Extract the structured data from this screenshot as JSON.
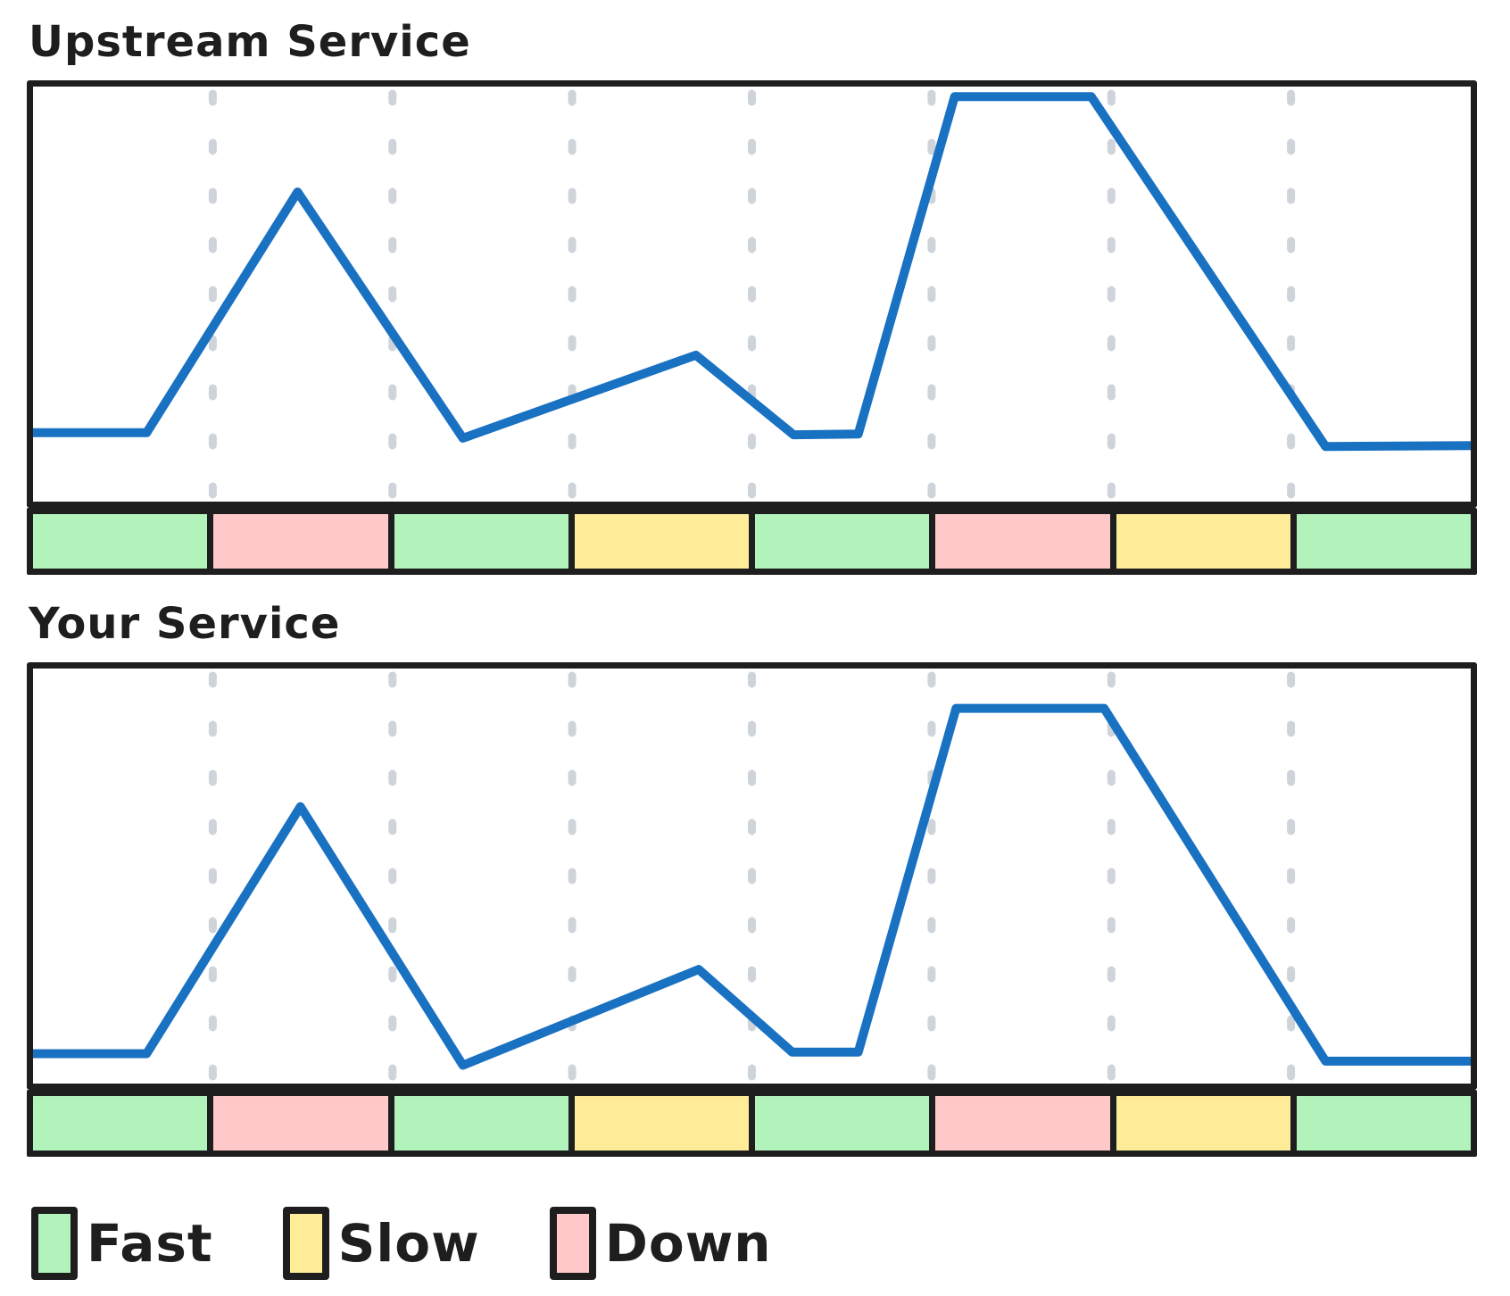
{
  "titles": {
    "chart1": "Upstream Service",
    "chart2": "Your Service"
  },
  "colors": {
    "line": "#1971c2",
    "frame": "#1e1e1e",
    "gridline": "#ced4da",
    "background": "#ffffff"
  },
  "legend": {
    "items": [
      {
        "label": "Fast",
        "color": "#b2f2bb"
      },
      {
        "label": "Slow",
        "color": "#ffec99"
      },
      {
        "label": "Down",
        "color": "#ffc9c9"
      }
    ]
  },
  "chart_data": [
    {
      "type": "line",
      "title": "Upstream Service",
      "xlabel": "",
      "ylabel": "",
      "grid": "7 dashed vertical gridlines at eighths of the width",
      "gridlines_x_pct": [
        12.5,
        25,
        37.5,
        50,
        62.5,
        75,
        87.5
      ],
      "segments": [
        "Fast",
        "Down",
        "Fast",
        "Slow",
        "Fast",
        "Down",
        "Slow",
        "Fast"
      ],
      "line_points_pct": [
        [
          0,
          83.4
        ],
        [
          7.9,
          83.4
        ],
        [
          18.4,
          25.4
        ],
        [
          29.9,
          84.7
        ],
        [
          46.1,
          64.7
        ],
        [
          52.9,
          83.9
        ],
        [
          57.4,
          83.7
        ],
        [
          64.1,
          2.4
        ],
        [
          73.6,
          2.4
        ],
        [
          89.9,
          86.7
        ],
        [
          100,
          86.5
        ]
      ],
      "description": "Qualitative latency line: low baseline, tall spike in segment 2 (Down), shallow bump across segments 3-4 (Slow), near-top plateau over segment 6 (Down), long ramp down through segment 7 (Slow), low baseline in segment 8"
    },
    {
      "type": "line",
      "title": "Your Service",
      "xlabel": "",
      "ylabel": "",
      "grid": "7 dashed vertical gridlines at eighths of the width",
      "gridlines_x_pct": [
        12.5,
        25,
        37.5,
        50,
        62.5,
        75,
        87.5
      ],
      "segments": [
        "Fast",
        "Down",
        "Fast",
        "Slow",
        "Fast",
        "Down",
        "Slow",
        "Fast"
      ],
      "line_points_pct": [
        [
          0,
          92.8
        ],
        [
          7.9,
          92.8
        ],
        [
          18.6,
          33.3
        ],
        [
          29.9,
          95.6
        ],
        [
          46.3,
          72.5
        ],
        [
          52.8,
          92.4
        ],
        [
          57.4,
          92.4
        ],
        [
          64.2,
          9.6
        ],
        [
          74.5,
          9.6
        ],
        [
          89.9,
          94.6
        ],
        [
          100,
          94.6
        ]
      ],
      "description": "Same latency shape as upstream, slightly lower amplitude: spike in segment 2, bump in segments 3-4, high plateau over segment 6, ramp down through segment 7"
    }
  ]
}
